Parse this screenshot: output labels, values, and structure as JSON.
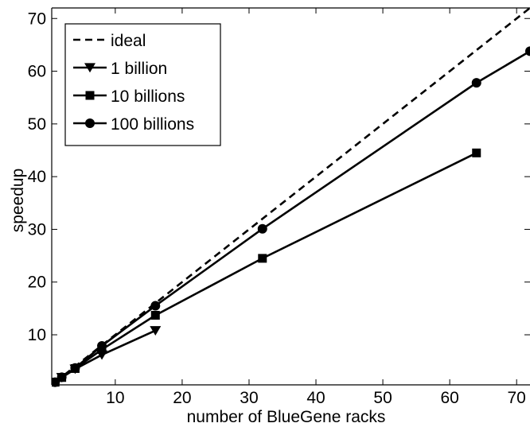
{
  "chart_data": {
    "type": "line",
    "xlabel": "number of BlueGene racks",
    "ylabel": "speedup",
    "xlim": [
      0.5,
      72
    ],
    "ylim": [
      0.5,
      72
    ],
    "grid": false,
    "legend_position": "top-left",
    "xticks": [
      10,
      20,
      30,
      40,
      50,
      60,
      70
    ],
    "yticks": [
      10,
      20,
      30,
      40,
      50,
      60,
      70
    ],
    "series": [
      {
        "name": "ideal",
        "style": "dashed",
        "marker": "none",
        "x": [
          1,
          72
        ],
        "y": [
          1,
          72
        ]
      },
      {
        "name": "1 billion",
        "style": "solid",
        "marker": "triangle-down",
        "x": [
          1,
          2,
          4,
          8,
          16
        ],
        "y": [
          1,
          1.9,
          3.5,
          6.2,
          10.8
        ]
      },
      {
        "name": "10 billions",
        "style": "solid",
        "marker": "square",
        "x": [
          1,
          2,
          4,
          8,
          16,
          32,
          64
        ],
        "y": [
          1,
          1.9,
          3.6,
          7.2,
          13.7,
          24.5,
          44.5
        ]
      },
      {
        "name": "100 billions",
        "style": "solid",
        "marker": "circle",
        "x": [
          1,
          2,
          4,
          8,
          16,
          32,
          64,
          72
        ],
        "y": [
          1,
          1.95,
          3.7,
          7.9,
          15.5,
          30.1,
          57.8,
          63.8
        ]
      }
    ]
  }
}
